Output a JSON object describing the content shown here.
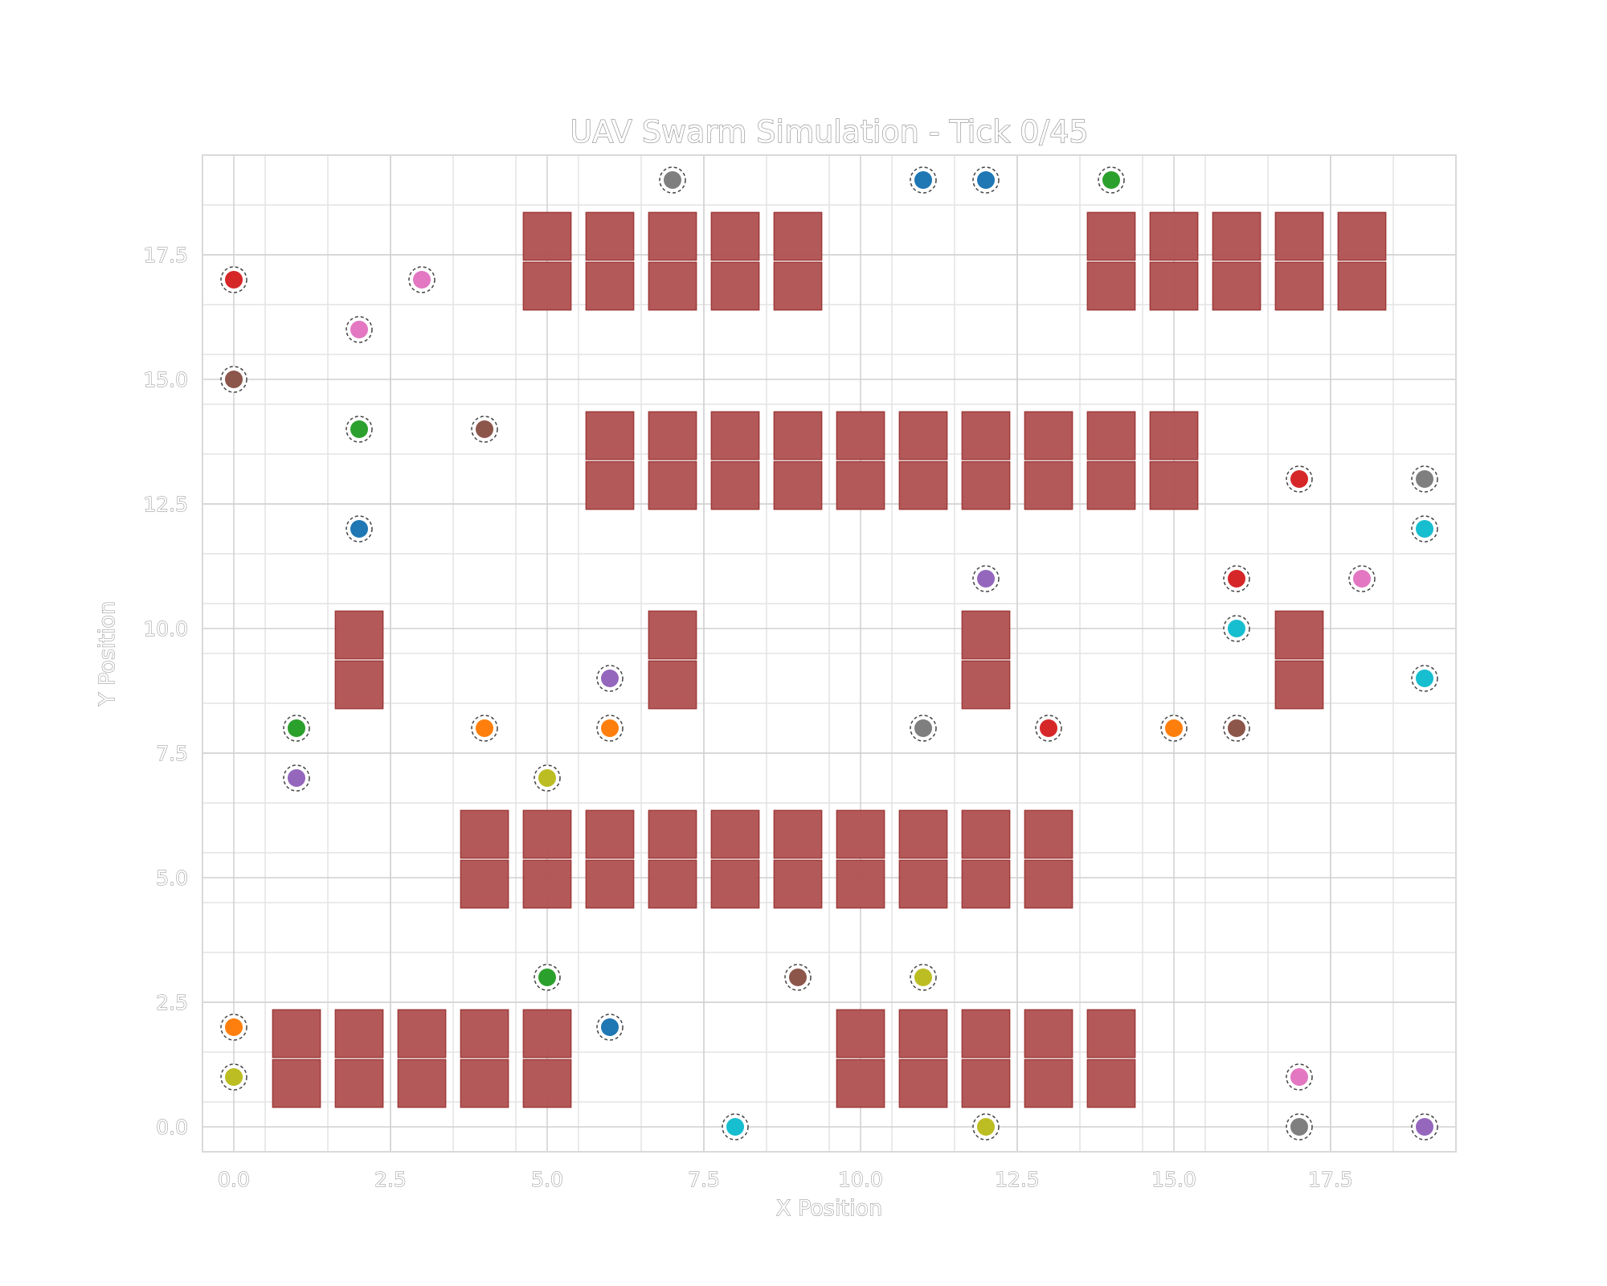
{
  "chart_data": {
    "type": "scatter",
    "title": "UAV Swarm Simulation - Tick 0/45",
    "xlabel": "X Position",
    "ylabel": "Y Position",
    "xlim": [
      -0.5,
      19.5
    ],
    "ylim": [
      -0.5,
      19.5
    ],
    "xticks": [
      "0.0",
      "2.5",
      "5.0",
      "7.5",
      "10.0",
      "12.5",
      "15.0",
      "17.5"
    ],
    "yticks": [
      "0.0",
      "2.5",
      "5.0",
      "7.5",
      "10.0",
      "12.5",
      "15.0",
      "17.5"
    ],
    "grid": true,
    "obstacle_color": "#b05050",
    "obstacles": [
      {
        "x": 5,
        "y": 18
      },
      {
        "x": 6,
        "y": 18
      },
      {
        "x": 7,
        "y": 18
      },
      {
        "x": 8,
        "y": 18
      },
      {
        "x": 9,
        "y": 18
      },
      {
        "x": 14,
        "y": 18
      },
      {
        "x": 15,
        "y": 18
      },
      {
        "x": 16,
        "y": 18
      },
      {
        "x": 17,
        "y": 18
      },
      {
        "x": 18,
        "y": 18
      },
      {
        "x": 5,
        "y": 17
      },
      {
        "x": 6,
        "y": 17
      },
      {
        "x": 7,
        "y": 17
      },
      {
        "x": 8,
        "y": 17
      },
      {
        "x": 9,
        "y": 17
      },
      {
        "x": 14,
        "y": 17
      },
      {
        "x": 15,
        "y": 17
      },
      {
        "x": 16,
        "y": 17
      },
      {
        "x": 17,
        "y": 17
      },
      {
        "x": 18,
        "y": 17
      },
      {
        "x": 6,
        "y": 14
      },
      {
        "x": 7,
        "y": 14
      },
      {
        "x": 8,
        "y": 14
      },
      {
        "x": 9,
        "y": 14
      },
      {
        "x": 10,
        "y": 14
      },
      {
        "x": 11,
        "y": 14
      },
      {
        "x": 12,
        "y": 14
      },
      {
        "x": 13,
        "y": 14
      },
      {
        "x": 14,
        "y": 14
      },
      {
        "x": 15,
        "y": 14
      },
      {
        "x": 6,
        "y": 13
      },
      {
        "x": 7,
        "y": 13
      },
      {
        "x": 8,
        "y": 13
      },
      {
        "x": 9,
        "y": 13
      },
      {
        "x": 10,
        "y": 13
      },
      {
        "x": 11,
        "y": 13
      },
      {
        "x": 12,
        "y": 13
      },
      {
        "x": 13,
        "y": 13
      },
      {
        "x": 14,
        "y": 13
      },
      {
        "x": 15,
        "y": 13
      },
      {
        "x": 2,
        "y": 10
      },
      {
        "x": 7,
        "y": 10
      },
      {
        "x": 12,
        "y": 10
      },
      {
        "x": 17,
        "y": 10
      },
      {
        "x": 2,
        "y": 9
      },
      {
        "x": 7,
        "y": 9
      },
      {
        "x": 12,
        "y": 9
      },
      {
        "x": 17,
        "y": 9
      },
      {
        "x": 4,
        "y": 6
      },
      {
        "x": 5,
        "y": 6
      },
      {
        "x": 6,
        "y": 6
      },
      {
        "x": 7,
        "y": 6
      },
      {
        "x": 8,
        "y": 6
      },
      {
        "x": 9,
        "y": 6
      },
      {
        "x": 10,
        "y": 6
      },
      {
        "x": 11,
        "y": 6
      },
      {
        "x": 12,
        "y": 6
      },
      {
        "x": 13,
        "y": 6
      },
      {
        "x": 4,
        "y": 5
      },
      {
        "x": 5,
        "y": 5
      },
      {
        "x": 6,
        "y": 5
      },
      {
        "x": 7,
        "y": 5
      },
      {
        "x": 8,
        "y": 5
      },
      {
        "x": 9,
        "y": 5
      },
      {
        "x": 10,
        "y": 5
      },
      {
        "x": 11,
        "y": 5
      },
      {
        "x": 12,
        "y": 5
      },
      {
        "x": 13,
        "y": 5
      },
      {
        "x": 1,
        "y": 2
      },
      {
        "x": 2,
        "y": 2
      },
      {
        "x": 3,
        "y": 2
      },
      {
        "x": 4,
        "y": 2
      },
      {
        "x": 5,
        "y": 2
      },
      {
        "x": 10,
        "y": 2
      },
      {
        "x": 11,
        "y": 2
      },
      {
        "x": 12,
        "y": 2
      },
      {
        "x": 13,
        "y": 2
      },
      {
        "x": 14,
        "y": 2
      },
      {
        "x": 1,
        "y": 1
      },
      {
        "x": 2,
        "y": 1
      },
      {
        "x": 3,
        "y": 1
      },
      {
        "x": 4,
        "y": 1
      },
      {
        "x": 5,
        "y": 1
      },
      {
        "x": 10,
        "y": 1
      },
      {
        "x": 11,
        "y": 1
      },
      {
        "x": 12,
        "y": 1
      },
      {
        "x": 13,
        "y": 1
      },
      {
        "x": 14,
        "y": 1
      }
    ],
    "uavs": [
      {
        "x": 7,
        "y": 19,
        "color": "#7f7f7f"
      },
      {
        "x": 11,
        "y": 19,
        "color": "#1f77b4"
      },
      {
        "x": 12,
        "y": 19,
        "color": "#1f77b4"
      },
      {
        "x": 14,
        "y": 19,
        "color": "#2ca02c"
      },
      {
        "x": 0,
        "y": 17,
        "color": "#d62728"
      },
      {
        "x": 3,
        "y": 17,
        "color": "#e377c2"
      },
      {
        "x": 2,
        "y": 16,
        "color": "#e377c2"
      },
      {
        "x": 0,
        "y": 15,
        "color": "#8c564b"
      },
      {
        "x": 2,
        "y": 14,
        "color": "#2ca02c"
      },
      {
        "x": 4,
        "y": 14,
        "color": "#8c564b"
      },
      {
        "x": 17,
        "y": 13,
        "color": "#d62728"
      },
      {
        "x": 19,
        "y": 13,
        "color": "#7f7f7f"
      },
      {
        "x": 2,
        "y": 12,
        "color": "#1f77b4"
      },
      {
        "x": 19,
        "y": 12,
        "color": "#17becf"
      },
      {
        "x": 12,
        "y": 11,
        "color": "#9467bd"
      },
      {
        "x": 16,
        "y": 11,
        "color": "#d62728"
      },
      {
        "x": 18,
        "y": 11,
        "color": "#e377c2"
      },
      {
        "x": 16,
        "y": 10,
        "color": "#17becf"
      },
      {
        "x": 6,
        "y": 9,
        "color": "#9467bd"
      },
      {
        "x": 19,
        "y": 9,
        "color": "#17becf"
      },
      {
        "x": 1,
        "y": 8,
        "color": "#2ca02c"
      },
      {
        "x": 4,
        "y": 8,
        "color": "#ff7f0e"
      },
      {
        "x": 6,
        "y": 8,
        "color": "#ff7f0e"
      },
      {
        "x": 11,
        "y": 8,
        "color": "#7f7f7f"
      },
      {
        "x": 13,
        "y": 8,
        "color": "#d62728"
      },
      {
        "x": 15,
        "y": 8,
        "color": "#ff7f0e"
      },
      {
        "x": 16,
        "y": 8,
        "color": "#8c564b"
      },
      {
        "x": 1,
        "y": 7,
        "color": "#9467bd"
      },
      {
        "x": 5,
        "y": 7,
        "color": "#bcbd22"
      },
      {
        "x": 5,
        "y": 3,
        "color": "#2ca02c"
      },
      {
        "x": 9,
        "y": 3,
        "color": "#8c564b"
      },
      {
        "x": 11,
        "y": 3,
        "color": "#bcbd22"
      },
      {
        "x": 0,
        "y": 2,
        "color": "#ff7f0e"
      },
      {
        "x": 6,
        "y": 2,
        "color": "#1f77b4"
      },
      {
        "x": 0,
        "y": 1,
        "color": "#bcbd22"
      },
      {
        "x": 17,
        "y": 1,
        "color": "#e377c2"
      },
      {
        "x": 8,
        "y": 0,
        "color": "#17becf"
      },
      {
        "x": 12,
        "y": 0,
        "color": "#bcbd22"
      },
      {
        "x": 17,
        "y": 0,
        "color": "#7f7f7f"
      },
      {
        "x": 19,
        "y": 0,
        "color": "#9467bd"
      }
    ]
  }
}
